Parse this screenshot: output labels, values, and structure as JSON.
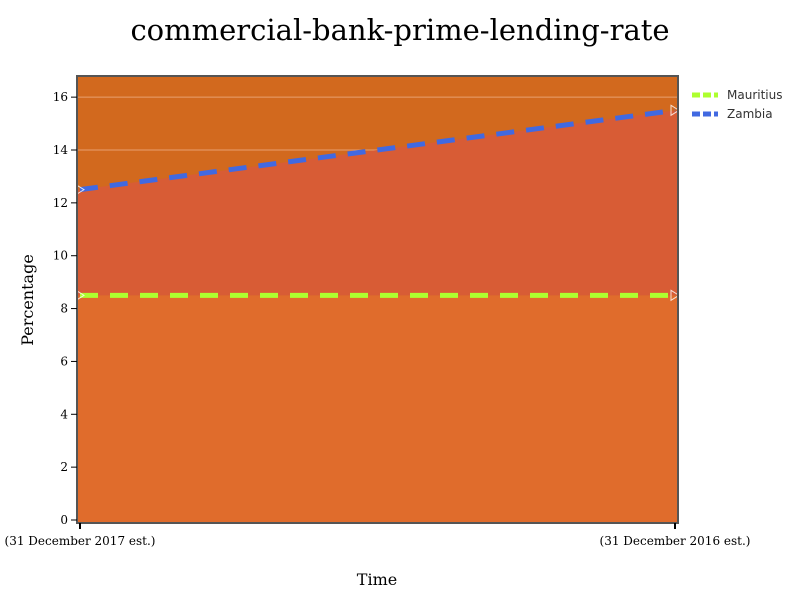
{
  "chart_data": {
    "type": "area",
    "title": "commercial-bank-prime-lending-rate",
    "xlabel": "Time",
    "ylabel": "Percentage",
    "categories": [
      "(31 December 2017 est.)",
      "(31 December 2016 est.)"
    ],
    "ylim": [
      0,
      16.8
    ],
    "yticks": [
      0,
      2,
      4,
      6,
      8,
      10,
      12,
      14,
      16
    ],
    "grid": true,
    "legend_position": "top-right",
    "series": [
      {
        "name": "Mauritius",
        "values": [
          8.5,
          8.5
        ],
        "color": "#adff2f",
        "fill": "#e06c2c"
      },
      {
        "name": "Zambia",
        "values": [
          12.5,
          15.5
        ],
        "color": "#4169e1",
        "fill": "#d85c35"
      }
    ],
    "background_color": "#d2691e",
    "frame_color": "#555555"
  }
}
